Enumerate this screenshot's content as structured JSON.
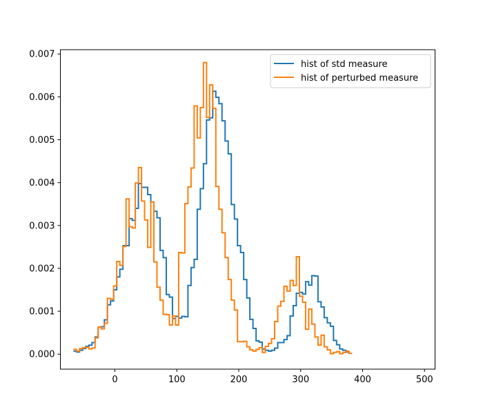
{
  "chart_data": {
    "type": "line",
    "subtype": "step-histogram",
    "title": "",
    "xlabel": "",
    "ylabel": "",
    "xlim": [
      -88,
      517
    ],
    "ylim": [
      -0.00035,
      0.0071
    ],
    "xticks": [
      0,
      100,
      200,
      300,
      400,
      500
    ],
    "yticks": [
      0.0,
      0.001,
      0.002,
      0.003,
      0.004,
      0.005,
      0.006,
      0.007
    ],
    "xtick_labels": [
      "0",
      "100",
      "200",
      "300",
      "400",
      "500"
    ],
    "ytick_labels": [
      "0.000",
      "0.001",
      "0.002",
      "0.003",
      "0.004",
      "0.005",
      "0.006",
      "0.007"
    ],
    "grid": false,
    "legend_position": "top-right",
    "bin_edges": [
      -67,
      -62,
      -57,
      -52,
      -47,
      -42,
      -37,
      -32,
      -27,
      -22,
      -17,
      -12,
      -7,
      -2,
      3,
      8,
      13,
      18,
      23,
      28,
      33,
      38,
      43,
      48,
      53,
      58,
      63,
      68,
      73,
      78,
      83,
      88,
      93,
      98,
      103,
      108,
      113,
      118,
      123,
      128,
      133,
      138,
      143,
      148,
      153,
      158,
      163,
      168,
      173,
      178,
      183,
      188,
      193,
      198,
      203,
      208,
      213,
      218,
      223,
      228,
      233,
      238,
      243,
      248,
      253,
      258,
      263,
      268,
      273,
      278,
      283,
      288,
      293,
      298,
      303,
      308,
      313,
      318,
      323,
      328,
      333,
      338,
      343,
      348,
      353,
      358,
      363,
      368,
      373,
      378,
      383,
      388,
      393,
      398,
      403,
      408,
      413,
      418,
      423,
      428,
      433,
      438,
      443,
      448,
      453,
      458,
      463,
      468,
      473,
      478,
      483,
      488,
      493,
      498,
      503
    ],
    "series": [
      {
        "name": "hist of std measure",
        "color": "#1f77b4",
        "values": [
          7e-05,
          5e-05,
          9e-05,
          0.00013,
          0.00018,
          0.00021,
          0.00027,
          0.0004,
          0.00063,
          0.00064,
          0.0008,
          0.00115,
          0.00124,
          0.0015,
          0.0018,
          0.00198,
          0.00253,
          0.00253,
          0.00316,
          0.00312,
          0.0034,
          0.00398,
          0.00389,
          0.00389,
          0.00372,
          0.00355,
          0.00333,
          0.00318,
          0.00242,
          0.00225,
          0.00139,
          0.00133,
          0.00083,
          0.00088,
          0.00084,
          0.00088,
          0.00087,
          0.0016,
          0.00202,
          0.00221,
          0.00338,
          0.00386,
          0.00444,
          0.00546,
          0.00551,
          0.00613,
          0.00599,
          0.00584,
          0.00544,
          0.00497,
          0.00467,
          0.00349,
          0.00315,
          0.00253,
          0.00237,
          0.00174,
          0.00131,
          0.00081,
          0.0006,
          0.00031,
          0.00028,
          0.00012,
          9e-05,
          7e-05,
          9e-05,
          0.00014,
          0.00027,
          0.00027,
          0.00034,
          0.00043,
          0.00089,
          0.00113,
          0.00142,
          0.00144,
          0.0014,
          0.00169,
          0.00161,
          0.00183,
          0.00182,
          0.00122,
          0.0011,
          0.00085,
          0.00073,
          0.00065,
          0.00032,
          0.00022,
          0.00012,
          9e-05,
          5e-05,
          2e-05
        ]
      },
      {
        "name": "hist of perturbed measure",
        "color": "#ff7f0e",
        "values": [
          0.00011,
          7e-05,
          0.00013,
          0.00015,
          0.00016,
          0.00012,
          0.00014,
          0.00038,
          0.00063,
          0.00059,
          0.00072,
          0.0013,
          0.00128,
          0.00159,
          0.00216,
          0.00207,
          0.00251,
          0.00362,
          0.00297,
          0.00294,
          0.00399,
          0.00435,
          0.00357,
          0.00313,
          0.00249,
          0.00355,
          0.00215,
          0.00156,
          0.00126,
          0.00093,
          0.00092,
          0.00068,
          0.00089,
          0.00068,
          0.00237,
          0.00236,
          0.00351,
          0.0039,
          0.00434,
          0.00579,
          0.00504,
          0.00575,
          0.0068,
          0.00552,
          0.00628,
          0.00573,
          0.00391,
          0.00338,
          0.00283,
          0.00225,
          0.00174,
          0.00126,
          0.00103,
          0.00029,
          0.00029,
          0.0003,
          0.00017,
          0.0001,
          7e-05,
          0.00011,
          0.00015,
          4e-05,
          0.00018,
          0.00025,
          0.00036,
          0.00076,
          0.00112,
          0.00123,
          0.00158,
          0.00147,
          0.00172,
          0.0016,
          0.00227,
          0.00135,
          0.00121,
          0.00058,
          0.00105,
          0.0007,
          0.0004,
          0.00021,
          0.00044,
          0.00017,
          0.0001,
          1e-05,
          4e-05,
          6e-05,
          1e-05,
          4e-05,
          7e-05,
          2e-05
        ]
      }
    ]
  }
}
